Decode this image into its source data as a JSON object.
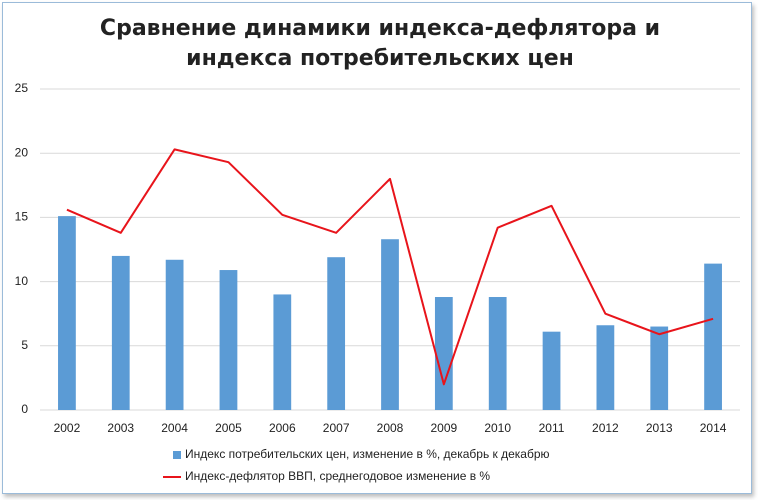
{
  "chart_data": {
    "type": "bar",
    "title": "Сравнение динамики индекса-дефлятора и индекса потребительских цен",
    "categories": [
      "2002",
      "2003",
      "2004",
      "2005",
      "2006",
      "2007",
      "2008",
      "2009",
      "2010",
      "2011",
      "2012",
      "2013",
      "2014"
    ],
    "series": [
      {
        "name": "Индекс потребительских цен, изменение в %, декабрь к декабрю",
        "type": "bar",
        "color": "#5b9bd5",
        "values": [
          15.1,
          12.0,
          11.7,
          10.9,
          9.0,
          11.9,
          13.3,
          8.8,
          8.8,
          6.1,
          6.6,
          6.5,
          11.4
        ]
      },
      {
        "name": "Индекс-дефлятор ВВП, среднегодовое изменение в %",
        "type": "line",
        "color": "#e8141b",
        "values": [
          15.6,
          13.8,
          20.3,
          19.3,
          15.2,
          13.8,
          18.0,
          2.0,
          14.2,
          15.9,
          7.5,
          5.9,
          7.1
        ]
      }
    ],
    "ylim": [
      0,
      25
    ],
    "yticks": [
      0,
      5,
      10,
      15,
      20,
      25
    ],
    "grid": true
  }
}
